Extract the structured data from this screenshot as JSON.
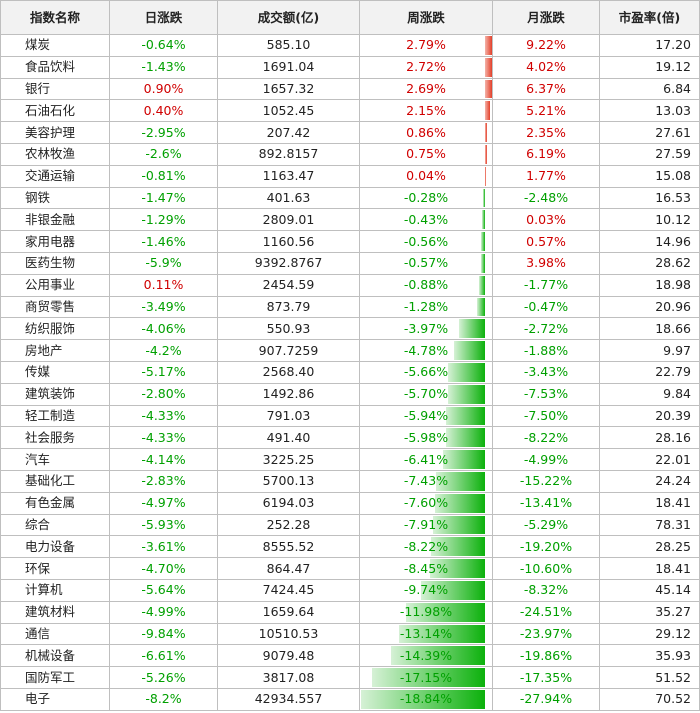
{
  "header": {
    "name": "指数名称",
    "daily": "日涨跌",
    "volume": "成交额(亿)",
    "weekly": "周涨跌",
    "monthly": "月涨跌",
    "pe": "市盈率(倍)"
  },
  "colors": {
    "positive": "#d00000",
    "negative": "#00a000",
    "bar_up": "#e3402a",
    "bar_down": "#0cb10c"
  },
  "rows": [
    {
      "name": "煤炭",
      "daily": "-0.64%",
      "volume": "585.10",
      "weekly": "2.79%",
      "weekly_value": 2.79,
      "monthly": "9.22%",
      "pe": "17.20"
    },
    {
      "name": "食品饮料",
      "daily": "-1.43%",
      "volume": "1691.04",
      "weekly": "2.72%",
      "weekly_value": 2.72,
      "monthly": "4.02%",
      "pe": "19.12"
    },
    {
      "name": "银行",
      "daily": "0.90%",
      "volume": "1657.32",
      "weekly": "2.69%",
      "weekly_value": 2.69,
      "monthly": "6.37%",
      "pe": "6.84"
    },
    {
      "name": "石油石化",
      "daily": "0.40%",
      "volume": "1052.45",
      "weekly": "2.15%",
      "weekly_value": 2.15,
      "monthly": "5.21%",
      "pe": "13.03"
    },
    {
      "name": "美容护理",
      "daily": "-2.95%",
      "volume": "207.42",
      "weekly": "0.86%",
      "weekly_value": 0.86,
      "monthly": "2.35%",
      "pe": "27.61"
    },
    {
      "name": "农林牧渔",
      "daily": "-2.6%",
      "volume": "892.8157",
      "weekly": "0.75%",
      "weekly_value": 0.75,
      "monthly": "6.19%",
      "pe": "27.59"
    },
    {
      "name": "交通运输",
      "daily": "-0.81%",
      "volume": "1163.47",
      "weekly": "0.04%",
      "weekly_value": 0.04,
      "monthly": "1.77%",
      "pe": "15.08"
    },
    {
      "name": "钢铁",
      "daily": "-1.47%",
      "volume": "401.63",
      "weekly": "-0.28%",
      "weekly_value": -0.28,
      "monthly": "-2.48%",
      "pe": "16.53"
    },
    {
      "name": "非银金融",
      "daily": "-1.29%",
      "volume": "2809.01",
      "weekly": "-0.43%",
      "weekly_value": -0.43,
      "monthly": "0.03%",
      "pe": "10.12"
    },
    {
      "name": "家用电器",
      "daily": "-1.46%",
      "volume": "1160.56",
      "weekly": "-0.56%",
      "weekly_value": -0.56,
      "monthly": "0.57%",
      "pe": "14.96"
    },
    {
      "name": "医药生物",
      "daily": "-5.9%",
      "volume": "9392.8767",
      "weekly": "-0.57%",
      "weekly_value": -0.57,
      "monthly": "3.98%",
      "pe": "28.62"
    },
    {
      "name": "公用事业",
      "daily": "0.11%",
      "volume": "2454.59",
      "weekly": "-0.88%",
      "weekly_value": -0.88,
      "monthly": "-1.77%",
      "pe": "18.98"
    },
    {
      "name": "商贸零售",
      "daily": "-3.49%",
      "volume": "873.79",
      "weekly": "-1.28%",
      "weekly_value": -1.28,
      "monthly": "-0.47%",
      "pe": "20.96"
    },
    {
      "name": "纺织服饰",
      "daily": "-4.06%",
      "volume": "550.93",
      "weekly": "-3.97%",
      "weekly_value": -3.97,
      "monthly": "-2.72%",
      "pe": "18.66"
    },
    {
      "name": "房地产",
      "daily": "-4.2%",
      "volume": "907.7259",
      "weekly": "-4.78%",
      "weekly_value": -4.78,
      "monthly": "-1.88%",
      "pe": "9.97"
    },
    {
      "name": "传媒",
      "daily": "-5.17%",
      "volume": "2568.40",
      "weekly": "-5.66%",
      "weekly_value": -5.66,
      "monthly": "-3.43%",
      "pe": "22.79"
    },
    {
      "name": "建筑装饰",
      "daily": "-2.80%",
      "volume": "1492.86",
      "weekly": "-5.70%",
      "weekly_value": -5.7,
      "monthly": "-7.53%",
      "pe": "9.84"
    },
    {
      "name": "轻工制造",
      "daily": "-4.33%",
      "volume": "791.03",
      "weekly": "-5.94%",
      "weekly_value": -5.94,
      "monthly": "-7.50%",
      "pe": "20.39"
    },
    {
      "name": "社会服务",
      "daily": "-4.33%",
      "volume": "491.40",
      "weekly": "-5.98%",
      "weekly_value": -5.98,
      "monthly": "-8.22%",
      "pe": "28.16"
    },
    {
      "name": "汽车",
      "daily": "-4.14%",
      "volume": "3225.25",
      "weekly": "-6.41%",
      "weekly_value": -6.41,
      "monthly": "-4.99%",
      "pe": "22.01"
    },
    {
      "name": "基础化工",
      "daily": "-2.83%",
      "volume": "5700.13",
      "weekly": "-7.43%",
      "weekly_value": -7.43,
      "monthly": "-15.22%",
      "pe": "24.24"
    },
    {
      "name": "有色金属",
      "daily": "-4.97%",
      "volume": "6194.03",
      "weekly": "-7.60%",
      "weekly_value": -7.6,
      "monthly": "-13.41%",
      "pe": "18.41"
    },
    {
      "name": "综合",
      "daily": "-5.93%",
      "volume": "252.28",
      "weekly": "-7.91%",
      "weekly_value": -7.91,
      "monthly": "-5.29%",
      "pe": "78.31"
    },
    {
      "name": "电力设备",
      "daily": "-3.61%",
      "volume": "8555.52",
      "weekly": "-8.22%",
      "weekly_value": -8.22,
      "monthly": "-19.20%",
      "pe": "28.25"
    },
    {
      "name": "环保",
      "daily": "-4.70%",
      "volume": "864.47",
      "weekly": "-8.45%",
      "weekly_value": -8.45,
      "monthly": "-10.60%",
      "pe": "18.41"
    },
    {
      "name": "计算机",
      "daily": "-5.64%",
      "volume": "7424.45",
      "weekly": "-9.74%",
      "weekly_value": -9.74,
      "monthly": "-8.32%",
      "pe": "45.14"
    },
    {
      "name": "建筑材料",
      "daily": "-4.99%",
      "volume": "1659.64",
      "weekly": "-11.98%",
      "weekly_value": -11.98,
      "monthly": "-24.51%",
      "pe": "35.27"
    },
    {
      "name": "通信",
      "daily": "-9.84%",
      "volume": "10510.53",
      "weekly": "-13.14%",
      "weekly_value": -13.14,
      "monthly": "-23.97%",
      "pe": "29.12"
    },
    {
      "name": "机械设备",
      "daily": "-6.61%",
      "volume": "9079.48",
      "weekly": "-14.39%",
      "weekly_value": -14.39,
      "monthly": "-19.86%",
      "pe": "35.93"
    },
    {
      "name": "国防军工",
      "daily": "-5.26%",
      "volume": "3817.08",
      "weekly": "-17.15%",
      "weekly_value": -17.15,
      "monthly": "-17.35%",
      "pe": "51.52"
    },
    {
      "name": "电子",
      "daily": "-8.2%",
      "volume": "42934.557",
      "weekly": "-18.84%",
      "weekly_value": -18.84,
      "monthly": "-27.94%",
      "pe": "70.52"
    }
  ]
}
